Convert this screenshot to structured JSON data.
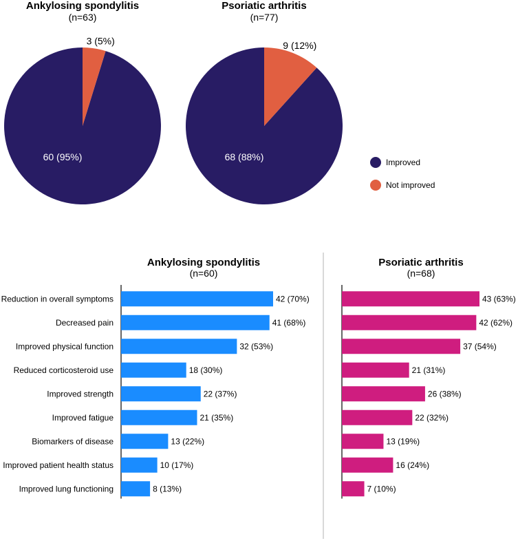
{
  "colors": {
    "improved": "#281c64",
    "not_improved": "#e15f41",
    "as_bar": "#1a8cff",
    "psa_bar": "#cf1d7f",
    "divider": "#cccccc"
  },
  "legend": {
    "improved": "Improved",
    "not_improved": "Not improved"
  },
  "chart_data": [
    {
      "type": "pie",
      "title": "Ankylosing spondylitis",
      "subtitle": "(n=63)",
      "slices": [
        {
          "name": "Improved",
          "value": 60,
          "label": "60 (95%)"
        },
        {
          "name": "Not improved",
          "value": 3,
          "label": "3 (5%)"
        }
      ]
    },
    {
      "type": "pie",
      "title": "Psoriatic arthritis",
      "subtitle": "(n=77)",
      "slices": [
        {
          "name": "Improved",
          "value": 68,
          "label": "68 (88%)"
        },
        {
          "name": "Not improved",
          "value": 9,
          "label": "9 (12%)"
        }
      ]
    },
    {
      "type": "bar",
      "orientation": "horizontal",
      "title": "Ankylosing spondylitis",
      "subtitle": "(n=60)",
      "categories": [
        "Reduction in overall symptoms",
        "Decreased pain",
        "Improved physical function",
        "Reduced corticosteroid use",
        "Improved strength",
        "Improved fatigue",
        "Biomarkers of disease",
        "Improved patient health status",
        "Improved lung functioning"
      ],
      "values": [
        42,
        41,
        32,
        18,
        22,
        21,
        13,
        10,
        8
      ],
      "labels": [
        "42 (70%)",
        "41 (68%)",
        "32 (53%)",
        "18 (30%)",
        "22 (37%)",
        "21 (35%)",
        "13 (22%)",
        "10 (17%)",
        "8 (13%)"
      ],
      "xlim": [
        0,
        42
      ]
    },
    {
      "type": "bar",
      "orientation": "horizontal",
      "title": "Psoriatic arthritis",
      "subtitle": "(n=68)",
      "categories": [
        "Reduction in overall symptoms",
        "Decreased pain",
        "Improved physical function",
        "Reduced corticosteroid use",
        "Improved strength",
        "Improved fatigue",
        "Biomarkers of disease",
        "Improved patient health status",
        "Improved lung functioning"
      ],
      "values": [
        43,
        42,
        37,
        21,
        26,
        22,
        13,
        16,
        7
      ],
      "labels": [
        "43 (63%)",
        "42 (62%)",
        "37 (54%)",
        "21 (31%)",
        "26 (38%)",
        "22 (32%)",
        "13 (19%)",
        "16 (24%)",
        "7 (10%)"
      ],
      "xlim": [
        0,
        43
      ]
    }
  ]
}
